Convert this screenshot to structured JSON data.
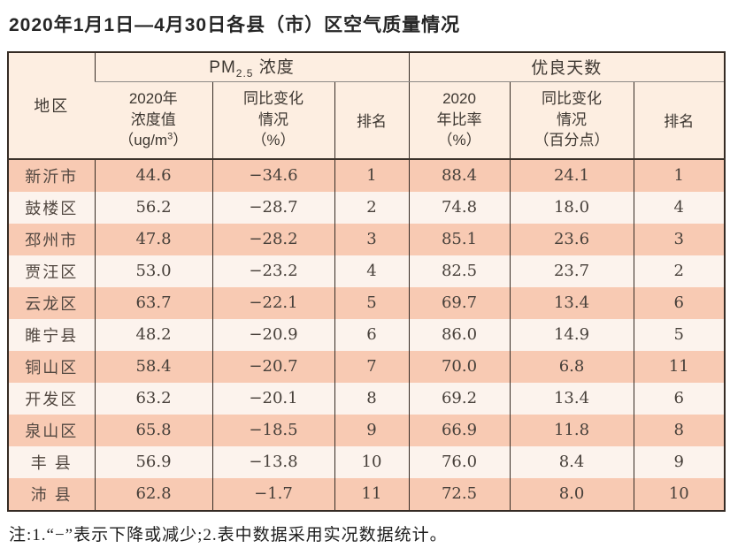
{
  "page": {
    "title": "2020年1月1日—4月30日各县（市）区空气质量情况",
    "note": "注:1.“−”表示下降或减少;2.表中数据采用实况数据统计。"
  },
  "colors": {
    "row_stripe_dark": "#f8cab3",
    "row_stripe_light": "#fcf3ed",
    "header_bg": "#fdeee1",
    "table_border": "#352b24",
    "group_divider": "#8e8a86",
    "text": "#47403a"
  },
  "table": {
    "region_header": "地区",
    "pm25_group": {
      "prefix": "PM",
      "sub": "2.5",
      "suffix": " 浓度"
    },
    "gooddays_group": "优良天数",
    "sub_headers": {
      "conc": {
        "l1": "2020年",
        "l2": "浓度值",
        "l3_pre": "（ug/m",
        "l3_sup": "3",
        "l3_post": "）"
      },
      "conc_change": {
        "l1": "同比变化",
        "l2": "情况",
        "l3": "（%）"
      },
      "rank_pm25": "排名",
      "ratio": {
        "l1": "2020",
        "l2": "年比率",
        "l3": "（%）"
      },
      "ratio_change": {
        "l1": "同比变化",
        "l2": "情况",
        "l3": "（百分点）"
      },
      "rank_gooddays": "排名"
    },
    "rows": [
      [
        "新沂市",
        "44.6",
        "−34.6",
        "1",
        "88.4",
        "24.1",
        "1"
      ],
      [
        "鼓楼区",
        "56.2",
        "−28.7",
        "2",
        "74.8",
        "18.0",
        "4"
      ],
      [
        "邳州市",
        "47.8",
        "−28.2",
        "3",
        "85.1",
        "23.6",
        "3"
      ],
      [
        "贾汪区",
        "53.0",
        "−23.2",
        "4",
        "82.5",
        "23.7",
        "2"
      ],
      [
        "云龙区",
        "63.7",
        "−22.1",
        "5",
        "69.7",
        "13.4",
        "6"
      ],
      [
        "睢宁县",
        "48.2",
        "−20.9",
        "6",
        "86.0",
        "14.9",
        "5"
      ],
      [
        "铜山区",
        "58.4",
        "−20.7",
        "7",
        "70.0",
        "6.8",
        "11"
      ],
      [
        "开发区",
        "63.2",
        "−20.1",
        "8",
        "69.2",
        "13.4",
        "6"
      ],
      [
        "泉山区",
        "65.8",
        "−18.5",
        "9",
        "66.9",
        "11.8",
        "8"
      ],
      [
        "丰 县",
        "56.9",
        "−13.8",
        "10",
        "76.0",
        "8.4",
        "9"
      ],
      [
        "沛 县",
        "62.8",
        "−1.7",
        "11",
        "72.5",
        "8.0",
        "10"
      ]
    ]
  }
}
